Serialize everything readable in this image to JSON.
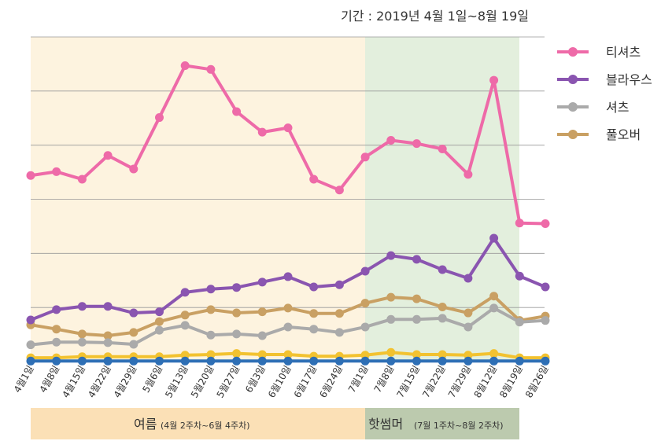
{
  "chart_data": {
    "type": "line",
    "title": "기간 : 2019년 4월 1일~8월 19일",
    "categories": [
      "4월1일",
      "4월8일",
      "4월15일",
      "4월22일",
      "4월29일",
      "5월6일",
      "5월13일",
      "5월20일",
      "5월27일",
      "6월3일",
      "6월10일",
      "6월17일",
      "6월24일",
      "7월1일",
      "7월8일",
      "7월15일",
      "7월22일",
      "7월29일",
      "8월12일",
      "8월19일",
      "8월26일"
    ],
    "series": [
      {
        "name": "티셔츠",
        "color": "#ee6aa8",
        "values": [
          3.44,
          3.51,
          3.37,
          3.81,
          3.56,
          4.51,
          5.47,
          5.4,
          4.62,
          4.24,
          4.32,
          3.37,
          3.17,
          3.78,
          4.09,
          4.03,
          3.93,
          3.46,
          5.2,
          2.56,
          2.55
        ]
      },
      {
        "name": "블라우스",
        "color": "#8a55b0",
        "values": [
          0.77,
          0.96,
          1.02,
          1.02,
          0.9,
          0.92,
          1.28,
          1.34,
          1.37,
          1.47,
          1.57,
          1.38,
          1.42,
          1.67,
          1.96,
          1.89,
          1.7,
          1.54,
          2.28,
          1.58,
          1.38
        ]
      },
      {
        "name": "셔츠",
        "color": "#aaaaaa",
        "values": [
          0.31,
          0.36,
          0.36,
          0.35,
          0.32,
          0.58,
          0.67,
          0.49,
          0.51,
          0.48,
          0.64,
          0.6,
          0.54,
          0.64,
          0.78,
          0.78,
          0.8,
          0.64,
          0.99,
          0.73,
          0.76
        ]
      },
      {
        "name": "풀오버",
        "color": "#c9a063",
        "values": [
          0.68,
          0.6,
          0.51,
          0.48,
          0.54,
          0.74,
          0.86,
          0.96,
          0.9,
          0.92,
          0.99,
          0.89,
          0.89,
          1.08,
          1.19,
          1.16,
          1.01,
          0.9,
          1.21,
          0.76,
          0.84
        ]
      },
      {
        "color": "#2e6fb5",
        "values": [
          0.01,
          0.01,
          0.01,
          0.01,
          0.01,
          0.01,
          0.01,
          0.01,
          0.01,
          0.01,
          0.01,
          0.01,
          0.01,
          0.01,
          0.01,
          0.01,
          0.01,
          0.01,
          0.01,
          0.01,
          0.01
        ]
      },
      {
        "color": "#f2c230",
        "values": [
          0.07,
          0.07,
          0.09,
          0.09,
          0.09,
          0.09,
          0.12,
          0.13,
          0.15,
          0.13,
          0.13,
          0.1,
          0.1,
          0.12,
          0.17,
          0.13,
          0.13,
          0.12,
          0.15,
          0.07,
          0.07
        ]
      }
    ],
    "ylim": [
      0,
      6
    ],
    "yticks": [
      0,
      1,
      2,
      3,
      4,
      5,
      6
    ],
    "grid": true,
    "annotations": [
      "여름",
      "(4월 2주차~6월 4주차)",
      "핫썸머",
      "(7월 1주차~8월 2주차)"
    ]
  }
}
